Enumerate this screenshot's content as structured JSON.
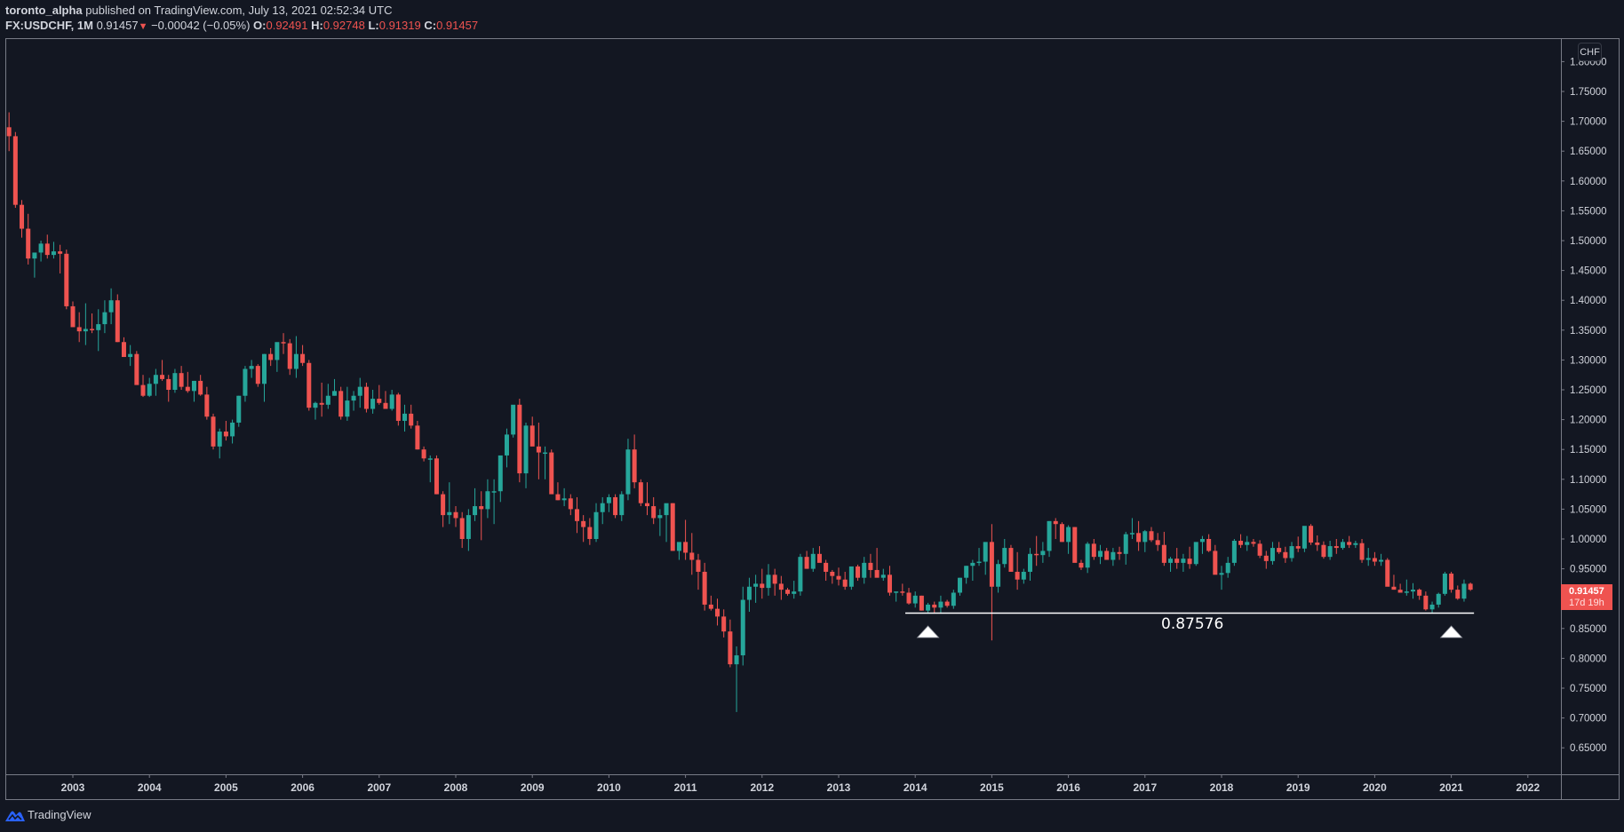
{
  "header": {
    "author": "toronto_alpha",
    "published_text": "published on TradingView.com, July 13, 2021 02:52:34 UTC",
    "symbol": "FX:USDCHF, 1M",
    "last_price": "0.91457",
    "change_arrow": "▼",
    "change": "−0.00042 (−0.05%)",
    "o_label": "O:",
    "o_value": "0.92491",
    "h_label": "H:",
    "h_value": "0.92748",
    "l_label": "L:",
    "l_value": "0.91319",
    "c_label": "C:",
    "c_value": "0.91457"
  },
  "price_axis": {
    "currency": "CHF",
    "current_price": "0.91457",
    "countdown": "17d 19h"
  },
  "annotation": {
    "level_label": "0.87576"
  },
  "footer": {
    "brand": "TradingView"
  },
  "colors": {
    "background": "#131722",
    "up": "#26a69a",
    "down": "#ef5350",
    "axis_text": "#d1d4dc",
    "border": "#787b86",
    "annotation": "#ffffff"
  },
  "chart_data": {
    "type": "candlestick",
    "title": "FX:USDCHF, 1M",
    "xlabel": "",
    "ylabel": "CHF",
    "ylim": [
      0.6,
      1.82
    ],
    "grid": false,
    "legend_position": "none",
    "x_ticks": [
      "2003",
      "2004",
      "2005",
      "2006",
      "2007",
      "2008",
      "2009",
      "2010",
      "2011",
      "2012",
      "2013",
      "2014",
      "2015",
      "2016",
      "2017",
      "2018",
      "2019",
      "2020",
      "2021",
      "2022"
    ],
    "y_ticks": [
      "1.80000",
      "1.75000",
      "1.70000",
      "1.65000",
      "1.60000",
      "1.55000",
      "1.50000",
      "1.45000",
      "1.40000",
      "1.35000",
      "1.30000",
      "1.25000",
      "1.20000",
      "1.15000",
      "1.10000",
      "1.05000",
      "1.00000",
      "0.95000",
      "0.90000",
      "0.85000",
      "0.80000",
      "0.75000",
      "0.70000",
      "0.65000"
    ],
    "start_month": "2002-03",
    "ohlc_fields": [
      "open",
      "high",
      "low",
      "close"
    ],
    "candles": [
      [
        1.69,
        1.715,
        1.65,
        1.675
      ],
      [
        1.675,
        1.682,
        1.555,
        1.56
      ],
      [
        1.56,
        1.568,
        1.505,
        1.52
      ],
      [
        1.52,
        1.545,
        1.46,
        1.47
      ],
      [
        1.47,
        1.478,
        1.438,
        1.48
      ],
      [
        1.48,
        1.5,
        1.465,
        1.495
      ],
      [
        1.495,
        1.51,
        1.47,
        1.476
      ],
      [
        1.476,
        1.498,
        1.47,
        1.482
      ],
      [
        1.482,
        1.493,
        1.445,
        1.478
      ],
      [
        1.478,
        1.485,
        1.385,
        1.39
      ],
      [
        1.39,
        1.398,
        1.36,
        1.355
      ],
      [
        1.355,
        1.38,
        1.33,
        1.348
      ],
      [
        1.348,
        1.395,
        1.325,
        1.352
      ],
      [
        1.352,
        1.378,
        1.345,
        1.35
      ],
      [
        1.35,
        1.385,
        1.315,
        1.36
      ],
      [
        1.36,
        1.4,
        1.345,
        1.38
      ],
      [
        1.38,
        1.42,
        1.36,
        1.4
      ],
      [
        1.4,
        1.41,
        1.33,
        1.33
      ],
      [
        1.33,
        1.338,
        1.305,
        1.305
      ],
      [
        1.305,
        1.325,
        1.29,
        1.31
      ],
      [
        1.31,
        1.315,
        1.26,
        1.258
      ],
      [
        1.258,
        1.275,
        1.238,
        1.24
      ],
      [
        1.24,
        1.27,
        1.238,
        1.26
      ],
      [
        1.26,
        1.285,
        1.24,
        1.275
      ],
      [
        1.275,
        1.3,
        1.265,
        1.268
      ],
      [
        1.268,
        1.275,
        1.23,
        1.25
      ],
      [
        1.25,
        1.285,
        1.245,
        1.278
      ],
      [
        1.278,
        1.29,
        1.25,
        1.255
      ],
      [
        1.255,
        1.28,
        1.245,
        1.248
      ],
      [
        1.248,
        1.265,
        1.23,
        1.265
      ],
      [
        1.265,
        1.275,
        1.24,
        1.242
      ],
      [
        1.242,
        1.255,
        1.2,
        1.205
      ],
      [
        1.205,
        1.21,
        1.15,
        1.155
      ],
      [
        1.155,
        1.185,
        1.135,
        1.18
      ],
      [
        1.18,
        1.198,
        1.165,
        1.172
      ],
      [
        1.172,
        1.2,
        1.16,
        1.195
      ],
      [
        1.195,
        1.24,
        1.188,
        1.24
      ],
      [
        1.24,
        1.29,
        1.23,
        1.285
      ],
      [
        1.285,
        1.3,
        1.27,
        1.29
      ],
      [
        1.29,
        1.293,
        1.255,
        1.26
      ],
      [
        1.26,
        1.31,
        1.23,
        1.31
      ],
      [
        1.31,
        1.32,
        1.29,
        1.3
      ],
      [
        1.3,
        1.325,
        1.28,
        1.33
      ],
      [
        1.33,
        1.345,
        1.31,
        1.328
      ],
      [
        1.328,
        1.335,
        1.275,
        1.285
      ],
      [
        1.285,
        1.34,
        1.27,
        1.31
      ],
      [
        1.31,
        1.325,
        1.29,
        1.295
      ],
      [
        1.295,
        1.3,
        1.215,
        1.22
      ],
      [
        1.22,
        1.23,
        1.2,
        1.228
      ],
      [
        1.228,
        1.262,
        1.205,
        1.225
      ],
      [
        1.225,
        1.26,
        1.218,
        1.24
      ],
      [
        1.24,
        1.268,
        1.24,
        1.248
      ],
      [
        1.248,
        1.255,
        1.2,
        1.205
      ],
      [
        1.205,
        1.255,
        1.198,
        1.232
      ],
      [
        1.232,
        1.248,
        1.215,
        1.24
      ],
      [
        1.24,
        1.27,
        1.22,
        1.255
      ],
      [
        1.255,
        1.262,
        1.212,
        1.218
      ],
      [
        1.218,
        1.25,
        1.21,
        1.235
      ],
      [
        1.235,
        1.258,
        1.225,
        1.228
      ],
      [
        1.228,
        1.248,
        1.218,
        1.218
      ],
      [
        1.218,
        1.25,
        1.215,
        1.242
      ],
      [
        1.242,
        1.245,
        1.19,
        1.198
      ],
      [
        1.198,
        1.225,
        1.18,
        1.21
      ],
      [
        1.21,
        1.225,
        1.185,
        1.19
      ],
      [
        1.19,
        1.198,
        1.15,
        1.15
      ],
      [
        1.15,
        1.155,
        1.13,
        1.135
      ],
      [
        1.135,
        1.14,
        1.095,
        1.135
      ],
      [
        1.135,
        1.14,
        1.075,
        1.075
      ],
      [
        1.075,
        1.08,
        1.02,
        1.04
      ],
      [
        1.04,
        1.095,
        1.025,
        1.045
      ],
      [
        1.045,
        1.055,
        1.02,
        1.035
      ],
      [
        1.035,
        1.045,
        0.985,
        1.0
      ],
      [
        1.0,
        1.05,
        0.98,
        1.04
      ],
      [
        1.04,
        1.085,
        1.03,
        1.055
      ],
      [
        1.055,
        1.08,
        0.998,
        1.05
      ],
      [
        1.05,
        1.1,
        1.035,
        1.08
      ],
      [
        1.08,
        1.1,
        1.025,
        1.08
      ],
      [
        1.08,
        1.12,
        1.062,
        1.14
      ],
      [
        1.14,
        1.185,
        1.12,
        1.175
      ],
      [
        1.175,
        1.215,
        1.17,
        1.225
      ],
      [
        1.225,
        1.235,
        1.095,
        1.11
      ],
      [
        1.11,
        1.195,
        1.085,
        1.19
      ],
      [
        1.19,
        1.205,
        1.17,
        1.155
      ],
      [
        1.155,
        1.195,
        1.1,
        1.145
      ],
      [
        1.145,
        1.155,
        1.1,
        1.145
      ],
      [
        1.145,
        1.15,
        1.08,
        1.075
      ],
      [
        1.075,
        1.095,
        1.065,
        1.065
      ],
      [
        1.065,
        1.085,
        1.055,
        1.068
      ],
      [
        1.068,
        1.075,
        1.04,
        1.05
      ],
      [
        1.05,
        1.07,
        1.01,
        1.03
      ],
      [
        1.03,
        1.04,
        0.995,
        1.02
      ],
      [
        1.02,
        1.035,
        0.99,
        1.0
      ],
      [
        1.0,
        1.06,
        0.995,
        1.045
      ],
      [
        1.045,
        1.07,
        1.025,
        1.06
      ],
      [
        1.06,
        1.075,
        1.045,
        1.07
      ],
      [
        1.07,
        1.075,
        1.035,
        1.04
      ],
      [
        1.04,
        1.08,
        1.03,
        1.075
      ],
      [
        1.075,
        1.168,
        1.065,
        1.15
      ],
      [
        1.15,
        1.175,
        1.085,
        1.095
      ],
      [
        1.095,
        1.1,
        1.055,
        1.06
      ],
      [
        1.06,
        1.095,
        1.04,
        1.055
      ],
      [
        1.055,
        1.07,
        1.025,
        1.035
      ],
      [
        1.035,
        1.05,
        1.005,
        1.04
      ],
      [
        1.04,
        1.045,
        0.995,
        1.06
      ],
      [
        1.06,
        1.06,
        0.985,
        0.98
      ],
      [
        0.98,
        0.985,
        0.965,
        0.995
      ],
      [
        0.995,
        1.032,
        0.965,
        0.977
      ],
      [
        0.977,
        1.01,
        0.94,
        0.965
      ],
      [
        0.965,
        0.975,
        0.915,
        0.945
      ],
      [
        0.945,
        0.96,
        0.88,
        0.89
      ],
      [
        0.89,
        0.905,
        0.88,
        0.883
      ],
      [
        0.883,
        0.9,
        0.855,
        0.87
      ],
      [
        0.87,
        0.882,
        0.835,
        0.845
      ],
      [
        0.845,
        0.865,
        0.785,
        0.79
      ],
      [
        0.79,
        0.82,
        0.71,
        0.805
      ],
      [
        0.805,
        0.92,
        0.788,
        0.898
      ],
      [
        0.898,
        0.935,
        0.878,
        0.92
      ],
      [
        0.92,
        0.94,
        0.893,
        0.925
      ],
      [
        0.925,
        0.95,
        0.9,
        0.918
      ],
      [
        0.918,
        0.958,
        0.905,
        0.94
      ],
      [
        0.94,
        0.95,
        0.905,
        0.925
      ],
      [
        0.925,
        0.938,
        0.898,
        0.915
      ],
      [
        0.915,
        0.918,
        0.905,
        0.908
      ],
      [
        0.908,
        0.93,
        0.9,
        0.912
      ],
      [
        0.912,
        0.975,
        0.905,
        0.97
      ],
      [
        0.97,
        0.98,
        0.95,
        0.95
      ],
      [
        0.95,
        0.985,
        0.945,
        0.975
      ],
      [
        0.975,
        0.988,
        0.965,
        0.96
      ],
      [
        0.96,
        0.965,
        0.93,
        0.945
      ],
      [
        0.945,
        0.948,
        0.925,
        0.938
      ],
      [
        0.938,
        0.952,
        0.922,
        0.932
      ],
      [
        0.932,
        0.945,
        0.915,
        0.92
      ],
      [
        0.92,
        0.95,
        0.915,
        0.954
      ],
      [
        0.954,
        0.957,
        0.93,
        0.935
      ],
      [
        0.935,
        0.97,
        0.925,
        0.96
      ],
      [
        0.96,
        0.975,
        0.935,
        0.948
      ],
      [
        0.948,
        0.985,
        0.94,
        0.935
      ],
      [
        0.935,
        0.95,
        0.93,
        0.94
      ],
      [
        0.94,
        0.955,
        0.905,
        0.91
      ],
      [
        0.91,
        0.912,
        0.895,
        0.912
      ],
      [
        0.912,
        0.925,
        0.905,
        0.91
      ],
      [
        0.91,
        0.918,
        0.89,
        0.892
      ],
      [
        0.892,
        0.912,
        0.885,
        0.905
      ],
      [
        0.905,
        0.905,
        0.88,
        0.88
      ],
      [
        0.88,
        0.893,
        0.875,
        0.89
      ],
      [
        0.89,
        0.895,
        0.876,
        0.885
      ],
      [
        0.885,
        0.905,
        0.876,
        0.895
      ],
      [
        0.895,
        0.898,
        0.885,
        0.888
      ],
      [
        0.888,
        0.915,
        0.883,
        0.91
      ],
      [
        0.91,
        0.935,
        0.905,
        0.935
      ],
      [
        0.935,
        0.955,
        0.925,
        0.955
      ],
      [
        0.955,
        0.965,
        0.93,
        0.96
      ],
      [
        0.96,
        0.985,
        0.955,
        0.962
      ],
      [
        0.962,
        0.982,
        0.94,
        0.995
      ],
      [
        0.995,
        1.025,
        0.83,
        0.92
      ],
      [
        0.92,
        0.965,
        0.91,
        0.958
      ],
      [
        0.958,
        1.0,
        0.952,
        0.985
      ],
      [
        0.985,
        0.99,
        0.955,
        0.945
      ],
      [
        0.945,
        0.978,
        0.915,
        0.932
      ],
      [
        0.932,
        0.95,
        0.925,
        0.945
      ],
      [
        0.945,
        0.985,
        0.93,
        0.975
      ],
      [
        0.975,
        1.005,
        0.955,
        0.973
      ],
      [
        0.973,
        0.995,
        0.96,
        0.98
      ],
      [
        0.98,
        1.03,
        0.97,
        1.03
      ],
      [
        1.03,
        1.035,
        1.0,
        1.025
      ],
      [
        1.025,
        1.028,
        0.995,
        0.995
      ],
      [
        0.995,
        1.023,
        0.975,
        1.02
      ],
      [
        1.02,
        1.02,
        0.985,
        0.96
      ],
      [
        0.96,
        0.965,
        0.948,
        0.952
      ],
      [
        0.952,
        0.995,
        0.943,
        0.992
      ],
      [
        0.992,
        1.0,
        0.965,
        0.97
      ],
      [
        0.97,
        0.99,
        0.958,
        0.98
      ],
      [
        0.98,
        0.985,
        0.968,
        0.965
      ],
      [
        0.965,
        0.985,
        0.955,
        0.978
      ],
      [
        0.978,
        0.987,
        0.965,
        0.975
      ],
      [
        0.975,
        1.012,
        0.957,
        1.008
      ],
      [
        1.008,
        1.035,
        1.0,
        1.01
      ],
      [
        1.01,
        1.03,
        0.98,
        0.995
      ],
      [
        0.995,
        1.015,
        0.978,
        1.013
      ],
      [
        1.013,
        1.02,
        0.995,
        0.998
      ],
      [
        0.998,
        1.01,
        0.98,
        0.99
      ],
      [
        0.99,
        1.012,
        0.955,
        0.96
      ],
      [
        0.96,
        0.97,
        0.945,
        0.967
      ],
      [
        0.967,
        0.985,
        0.95,
        0.96
      ],
      [
        0.96,
        0.975,
        0.945,
        0.967
      ],
      [
        0.967,
        0.987,
        0.95,
        0.958
      ],
      [
        0.958,
        0.98,
        0.955,
        0.995
      ],
      [
        0.995,
        1.005,
        0.975,
        1.0
      ],
      [
        1.0,
        1.008,
        0.978,
        0.98
      ],
      [
        0.98,
        0.99,
        0.945,
        0.94
      ],
      [
        0.94,
        0.955,
        0.915,
        0.943
      ],
      [
        0.943,
        0.97,
        0.935,
        0.96
      ],
      [
        0.96,
        1.0,
        0.955,
        0.997
      ],
      [
        0.997,
        1.008,
        0.985,
        0.99
      ],
      [
        0.99,
        1.005,
        0.98,
        0.995
      ],
      [
        0.995,
        1.0,
        0.987,
        0.992
      ],
      [
        0.992,
        0.998,
        0.968,
        0.972
      ],
      [
        0.972,
        0.98,
        0.95,
        0.963
      ],
      [
        0.963,
        0.995,
        0.957,
        0.985
      ],
      [
        0.985,
        0.995,
        0.975,
        0.978
      ],
      [
        0.978,
        0.987,
        0.96,
        0.968
      ],
      [
        0.968,
        0.995,
        0.962,
        0.988
      ],
      [
        0.988,
        1.004,
        0.978,
        0.984
      ],
      [
        0.984,
        1.02,
        0.978,
        1.022
      ],
      [
        1.022,
        1.025,
        0.99,
        0.994
      ],
      [
        0.994,
        1.006,
        0.98,
        0.99
      ],
      [
        0.99,
        0.996,
        0.967,
        0.97
      ],
      [
        0.97,
        0.997,
        0.965,
        0.988
      ],
      [
        0.988,
        1.0,
        0.975,
        0.985
      ],
      [
        0.985,
        1.0,
        0.982,
        0.995
      ],
      [
        0.995,
        1.005,
        0.985,
        0.99
      ],
      [
        0.99,
        0.997,
        0.985,
        0.993
      ],
      [
        0.993,
        1.0,
        0.96,
        0.965
      ],
      [
        0.965,
        0.985,
        0.955,
        0.968
      ],
      [
        0.968,
        0.978,
        0.955,
        0.962
      ],
      [
        0.962,
        0.975,
        0.955,
        0.965
      ],
      [
        0.965,
        0.968,
        0.93,
        0.92
      ],
      [
        0.92,
        0.94,
        0.915,
        0.915
      ],
      [
        0.915,
        0.925,
        0.912,
        0.91
      ],
      [
        0.91,
        0.932,
        0.905,
        0.912
      ],
      [
        0.912,
        0.926,
        0.9,
        0.915
      ],
      [
        0.915,
        0.917,
        0.898,
        0.905
      ],
      [
        0.905,
        0.912,
        0.88,
        0.882
      ],
      [
        0.882,
        0.895,
        0.875,
        0.89
      ],
      [
        0.89,
        0.91,
        0.885,
        0.908
      ],
      [
        0.908,
        0.945,
        0.905,
        0.942
      ],
      [
        0.942,
        0.945,
        0.91,
        0.915
      ],
      [
        0.915,
        0.922,
        0.898,
        0.9
      ],
      [
        0.9,
        0.932,
        0.895,
        0.925
      ],
      [
        0.925,
        0.927,
        0.913,
        0.915
      ]
    ],
    "annotations": [
      {
        "type": "horizontal_line",
        "price": 0.87576,
        "from": "2013-12",
        "to": "2021-04",
        "label": "0.87576"
      },
      {
        "type": "arrow_up",
        "at": "2014-03"
      },
      {
        "type": "arrow_up",
        "at": "2021-01"
      }
    ]
  }
}
